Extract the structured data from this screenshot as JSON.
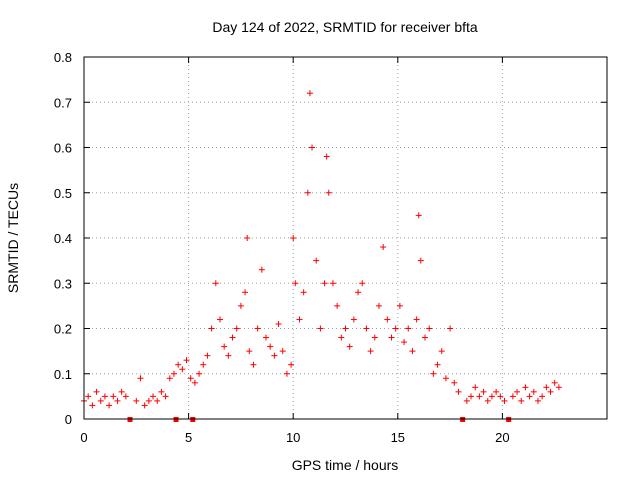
{
  "chart_data": {
    "type": "scatter",
    "title": "Day 124 of 2022, SRMTID for receiver bfta",
    "xlabel": "GPS time / hours",
    "ylabel": "SRMTID / TECUs",
    "xlim": [
      0,
      25
    ],
    "ylim": [
      0,
      0.8
    ],
    "grid": true,
    "x_ticks": [
      0,
      5,
      10,
      15,
      20
    ],
    "x_tick_labels": [
      "0",
      "5",
      "10",
      "15",
      "20"
    ],
    "y_ticks": [
      0,
      0.1,
      0.2,
      0.3,
      0.4,
      0.5,
      0.6,
      0.7,
      0.8
    ],
    "y_tick_labels": [
      "0",
      "0.1",
      "0.2",
      "0.3",
      "0.4",
      "0.5",
      "0.6",
      "0.7",
      "0.8"
    ],
    "marker": "+",
    "color": "#ff0000",
    "data_gap_markers_x": [
      2.2,
      4.4,
      5.2,
      18.1,
      20.3
    ],
    "series": [
      {
        "name": "SRMTID",
        "x": [
          0.0,
          0.2,
          0.4,
          0.6,
          0.8,
          1.0,
          1.2,
          1.4,
          1.6,
          1.8,
          2.0,
          2.5,
          2.7,
          2.9,
          3.1,
          3.3,
          3.5,
          3.7,
          3.9,
          4.1,
          4.3,
          4.5,
          4.7,
          4.9,
          5.1,
          5.3,
          5.5,
          5.7,
          5.9,
          6.1,
          6.3,
          6.5,
          6.7,
          6.9,
          7.1,
          7.3,
          7.5,
          7.7,
          7.8,
          7.9,
          8.1,
          8.3,
          8.5,
          8.7,
          8.9,
          9.1,
          9.3,
          9.5,
          9.7,
          9.9,
          10.0,
          10.1,
          10.3,
          10.5,
          10.7,
          10.8,
          10.9,
          11.1,
          11.3,
          11.5,
          11.6,
          11.7,
          11.9,
          12.1,
          12.3,
          12.5,
          12.7,
          12.9,
          13.1,
          13.3,
          13.5,
          13.7,
          13.9,
          14.1,
          14.3,
          14.5,
          14.7,
          14.9,
          15.1,
          15.3,
          15.5,
          15.7,
          15.9,
          16.0,
          16.1,
          16.3,
          16.5,
          16.7,
          16.9,
          17.1,
          17.3,
          17.5,
          17.7,
          17.9,
          18.3,
          18.5,
          18.7,
          18.9,
          19.1,
          19.3,
          19.5,
          19.7,
          19.9,
          20.1,
          20.5,
          20.7,
          20.9,
          21.1,
          21.3,
          21.5,
          21.7,
          21.9,
          22.1,
          22.3,
          22.5,
          22.7
        ],
        "y": [
          0.04,
          0.05,
          0.03,
          0.06,
          0.04,
          0.05,
          0.03,
          0.05,
          0.04,
          0.06,
          0.05,
          0.04,
          0.09,
          0.03,
          0.04,
          0.05,
          0.04,
          0.06,
          0.05,
          0.09,
          0.1,
          0.12,
          0.11,
          0.13,
          0.09,
          0.08,
          0.1,
          0.12,
          0.14,
          0.2,
          0.3,
          0.22,
          0.16,
          0.14,
          0.18,
          0.2,
          0.25,
          0.28,
          0.4,
          0.15,
          0.12,
          0.2,
          0.33,
          0.18,
          0.16,
          0.14,
          0.21,
          0.15,
          0.1,
          0.12,
          0.4,
          0.3,
          0.22,
          0.28,
          0.5,
          0.72,
          0.6,
          0.35,
          0.2,
          0.3,
          0.58,
          0.5,
          0.3,
          0.25,
          0.18,
          0.2,
          0.16,
          0.22,
          0.28,
          0.3,
          0.2,
          0.15,
          0.18,
          0.25,
          0.38,
          0.22,
          0.18,
          0.2,
          0.25,
          0.17,
          0.2,
          0.15,
          0.22,
          0.45,
          0.35,
          0.18,
          0.2,
          0.1,
          0.12,
          0.15,
          0.09,
          0.2,
          0.08,
          0.06,
          0.04,
          0.05,
          0.07,
          0.05,
          0.06,
          0.04,
          0.05,
          0.06,
          0.05,
          0.04,
          0.05,
          0.06,
          0.04,
          0.07,
          0.05,
          0.06,
          0.04,
          0.05,
          0.07,
          0.06,
          0.08,
          0.07
        ]
      }
    ]
  }
}
